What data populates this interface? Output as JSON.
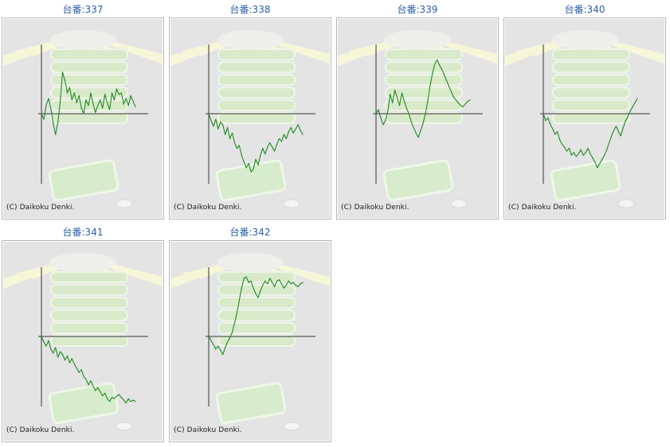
{
  "colors": {
    "title": "#2a5fa8",
    "line": "#1e8a1e",
    "axis": "#333333",
    "panel_bg": "#e4e4e4"
  },
  "copyright": "(C) Daikoku Denki.",
  "chart_data": [
    {
      "type": "line",
      "title": "台番:337",
      "grid": false,
      "ylim": [
        -100,
        100
      ],
      "x": [
        0,
        1,
        2,
        3,
        4,
        5,
        6,
        7,
        8,
        9,
        10,
        11,
        12,
        13,
        14,
        15,
        16,
        17,
        18,
        19,
        20,
        21,
        22,
        23,
        24,
        25,
        26,
        27,
        28,
        29,
        30,
        31,
        32,
        33,
        34,
        35,
        36,
        37,
        38,
        39,
        40
      ],
      "values": [
        0,
        -8,
        12,
        22,
        8,
        -14,
        -30,
        -12,
        18,
        60,
        48,
        30,
        38,
        20,
        30,
        16,
        26,
        8,
        0,
        20,
        12,
        30,
        14,
        2,
        12,
        20,
        8,
        28,
        16,
        6,
        30,
        20,
        36,
        28,
        30,
        14,
        22,
        12,
        26,
        18,
        10
      ]
    },
    {
      "type": "line",
      "title": "台番:338",
      "grid": false,
      "ylim": [
        -100,
        100
      ],
      "x": [
        0,
        1,
        2,
        3,
        4,
        5,
        6,
        7,
        8,
        9,
        10,
        11,
        12,
        13,
        14,
        15,
        16,
        17,
        18,
        19,
        20,
        21,
        22,
        23,
        24,
        25,
        26,
        27,
        28,
        29,
        30,
        31,
        32,
        33,
        34,
        35,
        36,
        37,
        38,
        39,
        40
      ],
      "values": [
        0,
        -10,
        -18,
        -8,
        -22,
        -12,
        -16,
        -30,
        -20,
        -36,
        -28,
        -42,
        -50,
        -46,
        -60,
        -70,
        -78,
        -72,
        -84,
        -80,
        -66,
        -74,
        -60,
        -50,
        -58,
        -48,
        -42,
        -48,
        -54,
        -44,
        -36,
        -40,
        -30,
        -36,
        -26,
        -20,
        -28,
        -22,
        -16,
        -24,
        -30
      ]
    },
    {
      "type": "line",
      "title": "台番:339",
      "grid": false,
      "ylim": [
        -100,
        100
      ],
      "x": [
        0,
        1,
        2,
        3,
        4,
        5,
        6,
        7,
        8,
        9,
        10,
        11,
        12,
        13,
        14,
        15,
        16,
        17,
        18,
        19,
        20,
        21,
        22,
        23,
        24,
        25,
        26,
        27,
        28,
        29,
        30,
        31,
        32,
        33,
        34,
        35,
        36,
        37,
        38,
        39,
        40
      ],
      "values": [
        0,
        6,
        -6,
        -16,
        -10,
        4,
        28,
        16,
        34,
        24,
        12,
        30,
        18,
        8,
        0,
        -12,
        -20,
        -28,
        -34,
        -24,
        -14,
        0,
        18,
        40,
        58,
        72,
        78,
        70,
        64,
        56,
        48,
        40,
        32,
        24,
        20,
        16,
        12,
        10,
        14,
        18,
        20
      ]
    },
    {
      "type": "line",
      "title": "台番:340",
      "grid": false,
      "ylim": [
        -100,
        100
      ],
      "x": [
        0,
        1,
        2,
        3,
        4,
        5,
        6,
        7,
        8,
        9,
        10,
        11,
        12,
        13,
        14,
        15,
        16,
        17,
        18,
        19,
        20,
        21,
        22,
        23,
        24,
        25,
        26,
        27,
        28,
        29,
        30,
        31,
        32,
        33,
        34,
        35,
        36,
        37,
        38,
        39,
        40
      ],
      "values": [
        0,
        -10,
        -6,
        -16,
        -22,
        -30,
        -26,
        -38,
        -44,
        -48,
        -54,
        -50,
        -60,
        -56,
        -62,
        -58,
        -52,
        -60,
        -56,
        -50,
        -58,
        -64,
        -70,
        -78,
        -72,
        -66,
        -60,
        -52,
        -42,
        -32,
        -24,
        -18,
        -26,
        -32,
        -20,
        -10,
        -4,
        4,
        10,
        16,
        22
      ]
    },
    {
      "type": "line",
      "title": "台番:341",
      "grid": false,
      "ylim": [
        -100,
        100
      ],
      "x": [
        0,
        1,
        2,
        3,
        4,
        5,
        6,
        7,
        8,
        9,
        10,
        11,
        12,
        13,
        14,
        15,
        16,
        17,
        18,
        19,
        20,
        21,
        22,
        23,
        24,
        25,
        26,
        27,
        28,
        29,
        30,
        31,
        32,
        33,
        34,
        35,
        36,
        37,
        38,
        39,
        40
      ],
      "values": [
        0,
        -8,
        -14,
        -6,
        -18,
        -24,
        -16,
        -30,
        -22,
        -26,
        -34,
        -28,
        -38,
        -32,
        -40,
        -46,
        -52,
        -48,
        -58,
        -62,
        -70,
        -64,
        -72,
        -78,
        -74,
        -80,
        -86,
        -82,
        -90,
        -94,
        -88,
        -90,
        -86,
        -84,
        -88,
        -92,
        -96,
        -90,
        -94,
        -92,
        -94
      ]
    },
    {
      "type": "line",
      "title": "台番:342",
      "grid": false,
      "ylim": [
        -100,
        100
      ],
      "x": [
        0,
        1,
        2,
        3,
        4,
        5,
        6,
        7,
        8,
        9,
        10,
        11,
        12,
        13,
        14,
        15,
        16,
        17,
        18,
        19,
        20,
        21,
        22,
        23,
        24,
        25,
        26,
        27,
        28,
        29,
        30,
        31,
        32,
        33,
        34,
        35,
        36,
        37,
        38,
        39,
        40
      ],
      "values": [
        0,
        -6,
        -12,
        -18,
        -14,
        -20,
        -26,
        -16,
        -8,
        -2,
        6,
        20,
        34,
        52,
        70,
        84,
        86,
        78,
        80,
        70,
        62,
        56,
        66,
        74,
        80,
        76,
        84,
        78,
        72,
        80,
        82,
        76,
        70,
        74,
        80,
        76,
        78,
        74,
        72,
        76,
        78
      ]
    }
  ]
}
